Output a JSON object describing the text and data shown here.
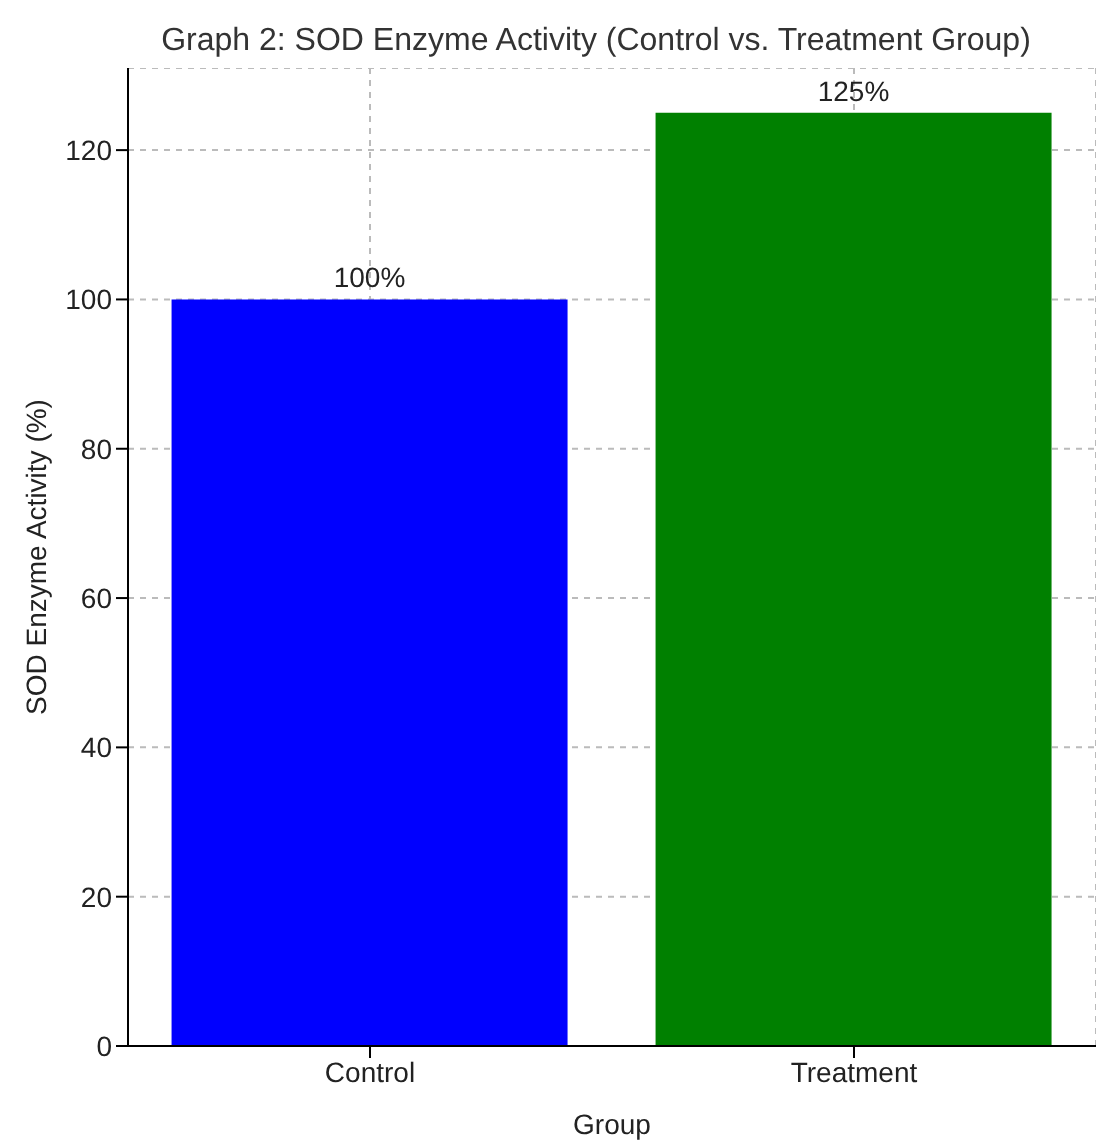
{
  "chart_data": {
    "type": "bar",
    "title": "Graph 2: SOD Enzyme Activity (Control vs. Treatment Group)",
    "xlabel": "Group",
    "ylabel": "SOD Enzyme Activity (%)",
    "categories": [
      "Control",
      "Treatment"
    ],
    "values": [
      100,
      125
    ],
    "colors": [
      "#0000ff",
      "#008000"
    ],
    "value_labels": [
      "100%",
      "125%"
    ],
    "ylim": [
      0,
      131
    ],
    "yticks": [
      0,
      20,
      40,
      60,
      80,
      100,
      120
    ],
    "grid": true
  }
}
